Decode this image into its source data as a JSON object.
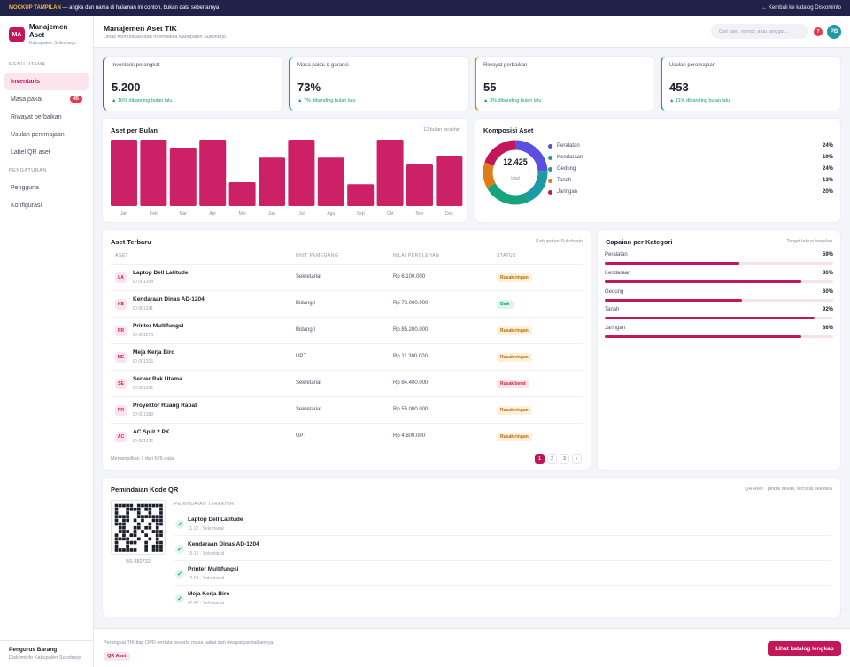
{
  "banner": {
    "tag": "MOCKUP TAMPILAN",
    "text": " — angka dan nama di halaman ini contoh, bukan data sebenarnya",
    "back": "← Kembali ke katalog Diskominfo"
  },
  "sidebar": {
    "logo": "MA",
    "title": "Manajemen Aset",
    "subtitle": "Kabupaten Sukoharjo",
    "section_main": "MENU UTAMA",
    "items_main": [
      {
        "label": "Inventaris",
        "badge": ""
      },
      {
        "label": "Masa pakai",
        "badge": "45"
      },
      {
        "label": "Riwayat perbaikan",
        "badge": ""
      },
      {
        "label": "Usulan peremajaan",
        "badge": ""
      },
      {
        "label": "Label QR aset",
        "badge": ""
      }
    ],
    "section_settings": "PENGATURAN",
    "items_settings": [
      {
        "label": "Pengguna"
      },
      {
        "label": "Konfigurasi"
      }
    ],
    "footer_title": "Pengurus Barang",
    "footer_sub": "Diskominfo Kabupaten Sukoharjo"
  },
  "topbar": {
    "title": "Manajemen Aset TIK",
    "subtitle": "Dinas Komunikasi dan Informatika Kabupaten Sukoharjo",
    "search_placeholder": "Cari aset, nomor, atau tanggal...",
    "notif_count": "7",
    "avatar": "PB"
  },
  "kpis": [
    {
      "label": "Inventaris perangkat",
      "value": "5.200",
      "trend": "▲ 16% dibanding bulan lalu",
      "accent": "#5b4ee0"
    },
    {
      "label": "Masa pakai & garansi",
      "value": "73%",
      "trend": "▲ 7% dibanding bulan lalu",
      "accent": "#18a37f"
    },
    {
      "label": "Riwayat perbaikan",
      "value": "55",
      "trend": "▲ 3% dibanding bulan lalu",
      "accent": "#e07b1a"
    },
    {
      "label": "Usulan peremajaan",
      "value": "453",
      "trend": "▲ 11% dibanding bulan lalu",
      "accent": "#1c9aa5"
    }
  ],
  "monthly": {
    "title": "Aset per Bulan",
    "note": "12 bulan terakhir"
  },
  "composition": {
    "title": "Komposisi Aset",
    "total": "12.425",
    "total_label": "total"
  },
  "chart_data": [
    {
      "type": "bar",
      "title": "Aset per Bulan",
      "categories": [
        "Jan",
        "Feb",
        "Mar",
        "Apr",
        "Mei",
        "Jun",
        "Jul",
        "Agu",
        "Sep",
        "Okt",
        "Nov",
        "Des"
      ],
      "values": [
        100,
        100,
        88,
        100,
        36,
        73,
        100,
        73,
        33,
        100,
        64,
        76
      ],
      "color": "#cc2166"
    },
    {
      "type": "pie",
      "title": "Komposisi Aset",
      "categories": [
        "Peralatan",
        "Kendaraan",
        "Gedung",
        "Tanah",
        "Jaringan"
      ],
      "values": [
        24,
        19,
        24,
        13,
        20
      ],
      "labels": [
        "24%",
        "19%",
        "24%",
        "13%",
        "20%"
      ],
      "colors": [
        "#5b4ee0",
        "#1c9aa5",
        "#18a37f",
        "#e07b1a",
        "#c2185b"
      ]
    }
  ],
  "table": {
    "title": "Aset Terbaru",
    "note": "Kabupaten Sukoharjo",
    "headers": [
      "ASET",
      "UNIT PEMEGANG",
      "NILAI PEROLEHAN",
      "STATUS"
    ],
    "rows": [
      {
        "ini": "LA",
        "name": "Laptop Dell Latitude",
        "id": "ID 001204",
        "unit": "Sekretariat",
        "amount": "Rp 6.100.000",
        "status": "Rusak ringan",
        "kind": "ringan"
      },
      {
        "ini": "KE",
        "name": "Kendaraan Dinas AD-1204",
        "id": "ID 001241",
        "unit": "Bidang I",
        "amount": "Rp 73.000.000",
        "status": "Baik",
        "kind": "baik"
      },
      {
        "ini": "PR",
        "name": "Printer Multifungsi",
        "id": "ID 001278",
        "unit": "Bidang I",
        "amount": "Rp 85.200.000",
        "status": "Rusak ringan",
        "kind": "ringan"
      },
      {
        "ini": "ME",
        "name": "Meja Kerja Biro",
        "id": "ID 001315",
        "unit": "UPT",
        "amount": "Rp 11.300.000",
        "status": "Rusak ringan",
        "kind": "ringan"
      },
      {
        "ini": "SE",
        "name": "Server Rak Utama",
        "id": "ID 001352",
        "unit": "Sekretariat",
        "amount": "Rp 84.400.000",
        "status": "Rusak berat",
        "kind": "berat"
      },
      {
        "ini": "PR",
        "name": "Proyektor Ruang Rapat",
        "id": "ID 001389",
        "unit": "Sekretariat",
        "amount": "Rp 55.000.000",
        "status": "Rusak ringan",
        "kind": "ringan"
      },
      {
        "ini": "AC",
        "name": "AC Split 2 PK",
        "id": "ID 001426",
        "unit": "UPT",
        "amount": "Rp 4.600.000",
        "status": "Rusak ringan",
        "kind": "ringan"
      }
    ],
    "summary": "Menampilkan 7 dari 626 data",
    "pages": [
      "1",
      "2",
      "3",
      "›"
    ]
  },
  "targets": {
    "title": "Capaian per Kategori",
    "note": "Target tahun berjalan",
    "items": [
      {
        "label": "Peralatan",
        "pct": "59%",
        "value": 59
      },
      {
        "label": "Kendaraan",
        "pct": "86%",
        "value": 86
      },
      {
        "label": "Gedung",
        "pct": "60%",
        "value": 60
      },
      {
        "label": "Tanah",
        "pct": "92%",
        "value": 92
      },
      {
        "label": "Jaringan",
        "pct": "86%",
        "value": 86
      }
    ]
  },
  "qr": {
    "title": "Pemindaian Kode QR",
    "note": "QR Aset · pindai sekali, tercatat seketika",
    "code": "BS-382732",
    "recent_label": "PEMINDAIAN TERAKHIR",
    "scans": [
      {
        "name": "Laptop Dell Latitude",
        "meta": "11.12 · Sekretariat"
      },
      {
        "name": "Kendaraan Dinas AD-1204",
        "meta": "15.12 · Sekretariat"
      },
      {
        "name": "Printer Multifungsi",
        "meta": "15.53 · Sekretariat"
      },
      {
        "name": "Meja Kerja Biro",
        "meta": "07.47 · Sekretariat"
      }
    ]
  },
  "footer": {
    "text": "Perangkat TIK tiap OPD terdata beserta masa pakai dan riwayat perbaikannya.",
    "tag": "QR Aset",
    "cta": "Lihat katalog lengkap"
  }
}
